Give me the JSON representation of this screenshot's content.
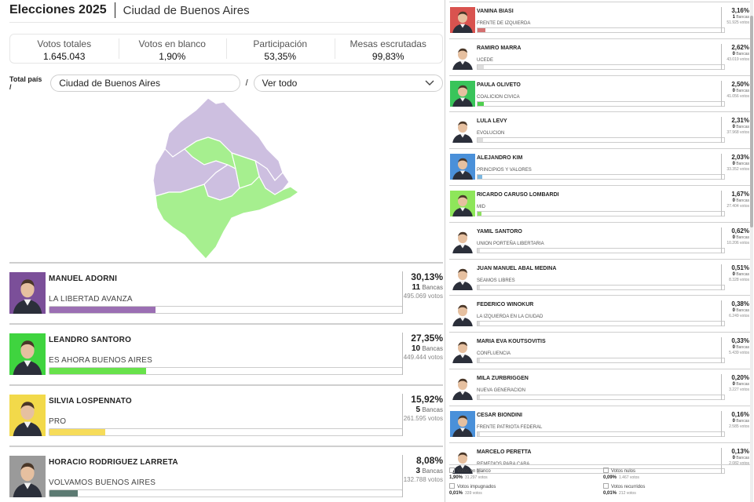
{
  "header": {
    "title": "Elecciones 2025",
    "district": "Ciudad de Buenos Aires"
  },
  "stats": [
    {
      "label": "Votos totales",
      "value": "1.645.043"
    },
    {
      "label": "Votos en blanco",
      "value": "1,90%"
    },
    {
      "label": "Participación",
      "value": "53,35%"
    },
    {
      "label": "Mesas escrutadas",
      "value": "99,83%"
    }
  ],
  "breadcrumb": {
    "home": "Total país /",
    "city": "Ciudad de Buenos Aires",
    "slash": "/",
    "select": "Ver todo"
  },
  "main_candidates": [
    {
      "name": "MANUEL ADORNI",
      "party": "LA LIBERTAD AVANZA",
      "pct": "30,13%",
      "seats": "11",
      "seats_label": "Bancas",
      "votes": "495.069 votos",
      "share": 30.13,
      "color": "#9b6fb3",
      "bg": "#7b4f99"
    },
    {
      "name": "LEANDRO SANTORO",
      "party": "ES AHORA BUENOS AIRES",
      "pct": "27,35%",
      "seats": "10",
      "seats_label": "Bancas",
      "votes": "449.444 votos",
      "share": 27.35,
      "color": "#68e24b",
      "bg": "#3fd43f"
    },
    {
      "name": "SILVIA LOSPENNATO",
      "party": "PRO",
      "pct": "15,92%",
      "seats": "5",
      "seats_label": "Bancas",
      "votes": "261.595 votos",
      "share": 15.92,
      "color": "#f6dc5a",
      "bg": "#f2d94a"
    },
    {
      "name": "HORACIO RODRIGUEZ LARRETA",
      "party": "VOLVAMOS BUENOS AIRES",
      "pct": "8,08%",
      "seats": "3",
      "seats_label": "Bancas",
      "votes": "132.788 votos",
      "share": 8.08,
      "color": "#5c7a72",
      "bg": "#9a9a9a"
    }
  ],
  "side_candidates": [
    {
      "name": "VANINA BIASI",
      "party": "FRENTE DE IZQUIERDA",
      "pct": "3,16%",
      "seats": "1",
      "seats_label": "Bancas",
      "votes": "51.925 votos",
      "share": 3.16,
      "color": "#d47070",
      "bg": "#d9534f"
    },
    {
      "name": "RAMIRO MARRA",
      "party": "UCEDE",
      "pct": "2,62%",
      "seats": "0",
      "seats_label": "Bancas",
      "votes": "43.019 votos",
      "share": 2.62,
      "color": "#dddddd",
      "bg": "#ffffff"
    },
    {
      "name": "PAULA OLIVETO",
      "party": "COALICION CIVICA",
      "pct": "2,50%",
      "seats": "0",
      "seats_label": "Bancas",
      "votes": "41.056 votos",
      "share": 2.5,
      "color": "#4fcf4f",
      "bg": "#39c45a"
    },
    {
      "name": "LULA LEVY",
      "party": "EVOLUCION",
      "pct": "2,31%",
      "seats": "0",
      "seats_label": "Bancas",
      "votes": "37.968 votos",
      "share": 2.31,
      "color": "#dddddd",
      "bg": "#ffffff"
    },
    {
      "name": "ALEJANDRO KIM",
      "party": "PRINCIPIOS Y VALORES",
      "pct": "2,03%",
      "seats": "0",
      "seats_label": "Bancas",
      "votes": "33.352 votos",
      "share": 2.03,
      "color": "#7cb7e0",
      "bg": "#4a90d9"
    },
    {
      "name": "RICARDO CARUSO LOMBARDI",
      "party": "MID",
      "pct": "1,67%",
      "seats": "0",
      "seats_label": "Bancas",
      "votes": "27.404 votos",
      "share": 1.67,
      "color": "#8de060",
      "bg": "#8ee65a"
    },
    {
      "name": "YAMIL SANTORO",
      "party": "UNION PORTEÑA LIBERTARIA",
      "pct": "0,62%",
      "seats": "0",
      "seats_label": "Bancas",
      "votes": "10.206 votos",
      "share": 0.62,
      "color": "#dddddd",
      "bg": "#ffffff"
    },
    {
      "name": "JUAN MANUEL ABAL MEDINA",
      "party": "SEAMOS LIBRES",
      "pct": "0,51%",
      "seats": "0",
      "seats_label": "Bancas",
      "votes": "8.328 votos",
      "share": 0.51,
      "color": "#dddddd",
      "bg": "#ffffff"
    },
    {
      "name": "FEDERICO WINOKUR",
      "party": "LA IZQUIERDA EN LA CIUDAD",
      "pct": "0,38%",
      "seats": "0",
      "seats_label": "Bancas",
      "votes": "6.249 votos",
      "share": 0.38,
      "color": "#dddddd",
      "bg": "#ffffff"
    },
    {
      "name": "MARIA EVA KOUTSOVITIS",
      "party": "CONFLUENCIA",
      "pct": "0,33%",
      "seats": "0",
      "seats_label": "Bancas",
      "votes": "5.439 votos",
      "share": 0.33,
      "color": "#dddddd",
      "bg": "#ffffff"
    },
    {
      "name": "MILA ZURBRIGGEN",
      "party": "NUEVA GENERACION",
      "pct": "0,20%",
      "seats": "0",
      "seats_label": "Bancas",
      "votes": "3.227 votos",
      "share": 0.2,
      "color": "#dddddd",
      "bg": "#ffffff"
    },
    {
      "name": "CESAR BIONDINI",
      "party": "FRENTE PATRIOTA FEDERAL",
      "pct": "0,16%",
      "seats": "0",
      "seats_label": "Bancas",
      "votes": "2.585 votos",
      "share": 0.16,
      "color": "#dddddd",
      "bg": "#4a90d9"
    },
    {
      "name": "MARCELO PERETTA",
      "party": "REMEDIOS PARA CABA",
      "pct": "0,13%",
      "seats": "0",
      "seats_label": "Bancas",
      "votes": "2.082 votos",
      "share": 0.13,
      "color": "#dddddd",
      "bg": "#ffffff"
    }
  ],
  "footer": [
    {
      "label": "Votos en blanco",
      "pct": "1,90%",
      "votes": "31.297 votos"
    },
    {
      "label": "Votos nulos",
      "pct": "0,09%",
      "votes": "1.467 votos"
    },
    {
      "label": "Votos impugnados",
      "pct": "0,01%",
      "votes": "339 votos"
    },
    {
      "label": "Votos recurridos",
      "pct": "0,01%",
      "votes": "212 votos"
    }
  ],
  "map": {
    "icon": "map-caba",
    "winner_colors": {
      "lla": "#cdbfe0",
      "eba": "#a6ef8f"
    }
  }
}
